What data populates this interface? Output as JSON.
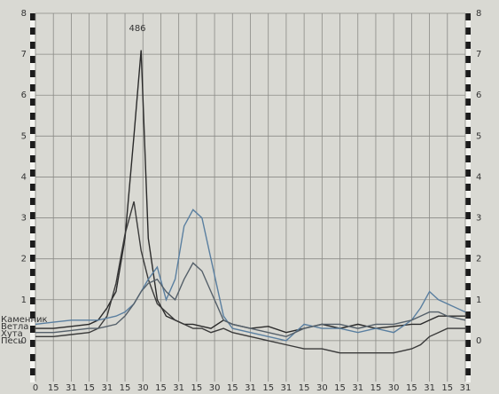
{
  "chart_data": {
    "type": "line",
    "annotation": "486",
    "x": [
      0,
      1,
      2,
      3,
      3.5,
      4,
      4.5,
      5,
      5.5,
      5.9,
      6.3,
      6.8,
      7.3,
      7.8,
      8.3,
      8.8,
      9.3,
      9.8,
      10.5,
      11,
      12,
      13,
      14,
      15,
      16,
      17,
      18,
      19,
      20,
      21,
      21.5,
      22,
      22.5,
      23,
      24
    ],
    "series": [
      {
        "name": "Каменник",
        "color": "#2a2a2a",
        "values": [
          0.3,
          0.3,
          0.35,
          0.4,
          0.5,
          0.8,
          1.2,
          2.5,
          5,
          7.1,
          2.5,
          1,
          0.6,
          0.5,
          0.4,
          0.4,
          0.35,
          0.3,
          0.5,
          0.4,
          0.3,
          0.35,
          0.2,
          0.3,
          0.4,
          0.3,
          0.4,
          0.3,
          0.35,
          0.4,
          0.4,
          0.5,
          0.6,
          0.6,
          0.6
        ]
      },
      {
        "name": "Ветла",
        "color": "#3a3a3a",
        "values": [
          0.1,
          0.1,
          0.15,
          0.2,
          0.3,
          0.6,
          1.4,
          2.6,
          3.4,
          2.2,
          1.5,
          0.9,
          0.7,
          0.5,
          0.4,
          0.3,
          0.3,
          0.2,
          0.3,
          0.2,
          0.1,
          0,
          -0.1,
          -0.2,
          -0.2,
          -0.3,
          -0.3,
          -0.3,
          -0.3,
          -0.2,
          -0.1,
          0.1,
          0.2,
          0.3,
          0.3
        ]
      },
      {
        "name": "Хута",
        "color": "#5a7fa0",
        "values": [
          0.4,
          0.45,
          0.5,
          0.5,
          0.5,
          0.55,
          0.6,
          0.7,
          0.9,
          1.2,
          1.5,
          1.8,
          1,
          1.5,
          2.8,
          3.2,
          3.0,
          2,
          0.6,
          0.3,
          0.2,
          0.1,
          0,
          0.4,
          0.3,
          0.3,
          0.2,
          0.3,
          0.2,
          0.5,
          0.8,
          1.2,
          1.0,
          0.9,
          0.7
        ]
      },
      {
        "name": "Песь",
        "color": "#55606a",
        "values": [
          0.2,
          0.2,
          0.25,
          0.3,
          0.3,
          0.35,
          0.4,
          0.6,
          0.9,
          1.2,
          1.4,
          1.5,
          1.2,
          1.0,
          1.5,
          1.9,
          1.7,
          1.2,
          0.5,
          0.4,
          0.3,
          0.2,
          0.1,
          0.3,
          0.4,
          0.4,
          0.3,
          0.4,
          0.4,
          0.5,
          0.6,
          0.7,
          0.7,
          0.6,
          0.5
        ]
      }
    ],
    "xlim": [
      0,
      24
    ],
    "xticks": [
      0,
      {
        "value": 1,
        "label": "15"
      },
      {
        "value": 2,
        "label": "31"
      },
      {
        "value": 3,
        "label": "15"
      },
      {
        "value": 4,
        "label": "31"
      },
      {
        "value": 5,
        "label": "15"
      },
      {
        "value": 6,
        "label": "30"
      },
      {
        "value": 7,
        "label": "15"
      },
      {
        "value": 8,
        "label": "31"
      },
      {
        "value": 9,
        "label": "15"
      },
      {
        "value": 10,
        "label": "30"
      },
      {
        "value": 11,
        "label": "15"
      },
      {
        "value": 12,
        "label": "31"
      },
      {
        "value": 13,
        "label": "15"
      },
      {
        "value": 14,
        "label": "31"
      },
      {
        "value": 15,
        "label": "15"
      },
      {
        "value": 16,
        "label": "30"
      },
      {
        "value": 17,
        "label": "15"
      },
      {
        "value": 18,
        "label": "31"
      },
      {
        "value": 19,
        "label": "15"
      },
      {
        "value": 20,
        "label": "30"
      },
      {
        "value": 21,
        "label": "15"
      },
      {
        "value": 22,
        "label": "31"
      },
      {
        "value": 23,
        "label": "15"
      },
      {
        "value": 24,
        "label": "31"
      }
    ],
    "ylim": [
      -1,
      8
    ],
    "yticks": [
      0,
      1,
      2,
      3,
      4,
      5,
      6,
      7,
      8
    ],
    "grid": true
  }
}
